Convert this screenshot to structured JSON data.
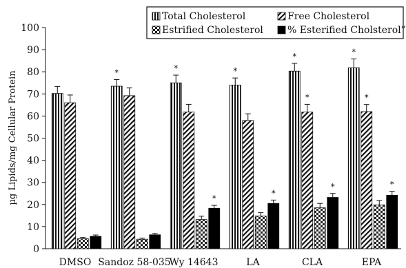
{
  "chart_data": {
    "type": "bar",
    "ylabel": "µg Lipids/mg Cellular Protein",
    "xlabel": "",
    "ylim": [
      0,
      100
    ],
    "yticks": [
      0,
      10,
      20,
      30,
      40,
      50,
      60,
      70,
      80,
      90,
      100
    ],
    "grid": false,
    "legend_position": "top-right",
    "categories": [
      "DMSO",
      "Sandoz 58-035",
      "Wy 14643",
      "LA",
      "CLA",
      "EPA"
    ],
    "series": [
      {
        "name": "Total Cholesterol",
        "pattern": "vertical-stripes",
        "values": [
          70.2,
          73.5,
          75.0,
          74.0,
          80.3,
          81.8
        ],
        "errors": [
          3.2,
          3.0,
          3.5,
          3.2,
          3.5,
          4.0
        ],
        "significant": [
          false,
          true,
          true,
          true,
          true,
          true
        ]
      },
      {
        "name": "Free Cholesterol",
        "pattern": "diagonal-hatch",
        "values": [
          66.0,
          69.2,
          61.8,
          58.0,
          61.8,
          62.0
        ],
        "errors": [
          3.5,
          3.5,
          3.5,
          3.0,
          3.5,
          3.2
        ],
        "significant": [
          false,
          false,
          false,
          false,
          true,
          true
        ]
      },
      {
        "name": "Estrified Cholesterol",
        "pattern": "checker",
        "values": [
          4.5,
          4.3,
          13.2,
          14.8,
          18.5,
          19.8
        ],
        "errors": [
          0.6,
          0.5,
          1.5,
          1.5,
          2.0,
          2.0
        ],
        "significant": [
          false,
          false,
          false,
          false,
          false,
          false
        ]
      },
      {
        "name": "% Esterified Cholsterol”",
        "pattern": "solid-black",
        "values": [
          5.6,
          6.3,
          18.3,
          20.5,
          23.2,
          24.2
        ],
        "errors": [
          0.6,
          0.6,
          1.3,
          1.5,
          1.8,
          1.8
        ],
        "significant": [
          false,
          false,
          true,
          true,
          true,
          true
        ]
      }
    ],
    "significance_marker": "*"
  }
}
